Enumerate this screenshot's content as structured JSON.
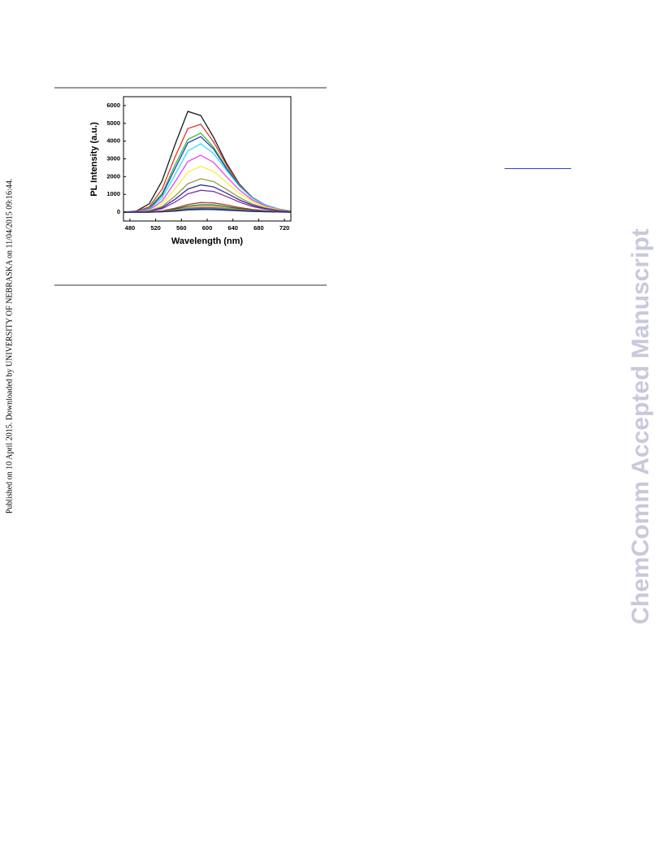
{
  "side_note": "Published on 10 April 2015. Downloaded by UNIVERSITY OF NEBRASKA on 11/04/2015 09:16:44.",
  "watermark": "ChemComm Accepted Manuscript",
  "chart_data": {
    "type": "line",
    "x_label": "Wavelength (nm)",
    "y_label": "PL Intensity (a.u.)",
    "x": [
      470,
      490,
      510,
      530,
      550,
      570,
      590,
      610,
      630,
      650,
      670,
      690,
      710,
      730
    ],
    "series": [
      {
        "color": "#1a1a1a",
        "values": [
          0,
          60,
          470,
          1760,
          3800,
          5670,
          5440,
          4210,
          2750,
          1580,
          820,
          410,
          180,
          60
        ]
      },
      {
        "color": "#e8312f",
        "values": [
          0,
          40,
          300,
          1300,
          3100,
          4700,
          4950,
          3950,
          2650,
          1550,
          820,
          410,
          180,
          60
        ]
      },
      {
        "color": "#2fc02f",
        "values": [
          0,
          30,
          230,
          1050,
          2650,
          4100,
          4450,
          3650,
          2500,
          1500,
          800,
          400,
          180,
          60
        ]
      },
      {
        "color": "#2040d0",
        "values": [
          0,
          30,
          200,
          950,
          2450,
          3900,
          4250,
          3550,
          2450,
          1480,
          790,
          400,
          180,
          60
        ]
      },
      {
        "color": "#30e0f0",
        "values": [
          0,
          20,
          170,
          800,
          2100,
          3450,
          3850,
          3300,
          2350,
          1450,
          780,
          400,
          180,
          60
        ]
      },
      {
        "color": "#f040f0",
        "values": [
          0,
          20,
          130,
          620,
          1700,
          2850,
          3200,
          2800,
          2000,
          1250,
          680,
          350,
          160,
          50
        ]
      },
      {
        "color": "#f0f040",
        "values": [
          0,
          10,
          100,
          470,
          1300,
          2250,
          2580,
          2300,
          1680,
          1070,
          590,
          300,
          140,
          50
        ]
      },
      {
        "color": "#9a9a40",
        "values": [
          0,
          10,
          70,
          320,
          900,
          1600,
          1880,
          1720,
          1280,
          820,
          460,
          240,
          110,
          40
        ]
      },
      {
        "color": "#3030a0",
        "values": [
          0,
          10,
          50,
          250,
          720,
          1300,
          1530,
          1420,
          1070,
          690,
          390,
          200,
          90,
          30
        ]
      },
      {
        "color": "#8030a0",
        "values": [
          0,
          0,
          40,
          190,
          560,
          1030,
          1230,
          1160,
          880,
          570,
          320,
          170,
          80,
          30
        ]
      },
      {
        "color": "#a04020",
        "values": [
          0,
          0,
          10,
          70,
          220,
          430,
          540,
          520,
          400,
          260,
          150,
          80,
          40,
          10
        ]
      },
      {
        "color": "#206020",
        "values": [
          0,
          0,
          10,
          50,
          170,
          330,
          410,
          400,
          300,
          200,
          110,
          60,
          30,
          10
        ]
      },
      {
        "color": "#e08020",
        "values": [
          0,
          0,
          10,
          40,
          120,
          240,
          300,
          290,
          220,
          150,
          80,
          40,
          20,
          10
        ]
      },
      {
        "color": "#808080",
        "values": [
          0,
          0,
          0,
          30,
          100,
          200,
          250,
          240,
          190,
          120,
          70,
          40,
          20,
          0
        ]
      },
      {
        "color": "#208080",
        "values": [
          0,
          0,
          0,
          20,
          80,
          160,
          200,
          190,
          150,
          100,
          60,
          30,
          10,
          0
        ]
      },
      {
        "color": "#202080",
        "values": [
          0,
          0,
          0,
          20,
          60,
          120,
          150,
          140,
          110,
          70,
          40,
          20,
          10,
          0
        ]
      }
    ],
    "xlim": [
      470,
      730
    ],
    "ylim": [
      -500,
      6500
    ],
    "xticks": [
      480,
      520,
      560,
      600,
      640,
      680,
      720
    ],
    "yticks": [
      0,
      1000,
      2000,
      3000,
      4000,
      5000,
      6000
    ]
  }
}
